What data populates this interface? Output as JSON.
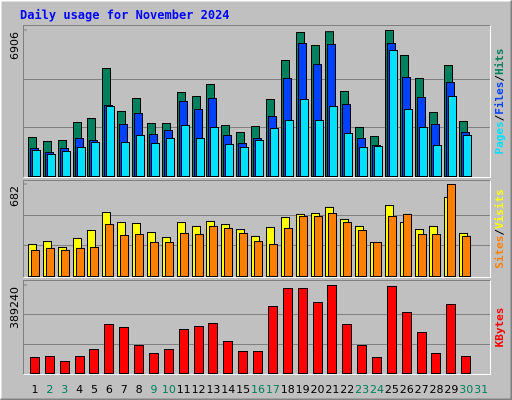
{
  "title": "Daily usage for November 2024",
  "separator": "/",
  "chart_data": [
    {
      "type": "bar",
      "ylim": [
        0,
        6906
      ],
      "yticks": [
        6906
      ],
      "series": [
        {
          "name": "Hits",
          "color": "#00805c",
          "values": [
            1845,
            1656,
            1703,
            2554,
            2743,
            5108,
            3075,
            3690,
            2507,
            2507,
            3973,
            3784,
            4352,
            2412,
            2081,
            2365,
            3642,
            5487,
            6811,
            6197,
            6850,
            4021,
            2318,
            1892,
            6906,
            5723,
            4636,
            3027,
            5250,
            2602,
            null
          ]
        },
        {
          "name": "Files",
          "color": "#0040ff",
          "values": [
            1324,
            1135,
            1324,
            1797,
            1703,
            3358,
            2460,
            2980,
            1987,
            2176,
            3548,
            3169,
            3690,
            1939,
            1561,
            1797,
            2838,
            4636,
            6291,
            5298,
            6244,
            3406,
            1797,
            1466,
            6291,
            4683,
            3737,
            2460,
            4446,
            2081,
            null
          ]
        },
        {
          "name": "Pages",
          "color": "#00e0ff",
          "values": [
            1230,
            1041,
            1183,
            1372,
            1608,
            3311,
            1608,
            1939,
            1561,
            1797,
            2412,
            1797,
            2318,
            1514,
            1372,
            1703,
            2270,
            2649,
            3642,
            2649,
            3311,
            2034,
            1372,
            1419,
            5960,
            3169,
            2318,
            1466,
            3784,
            1939,
            null
          ]
        }
      ]
    },
    {
      "type": "bar",
      "ylim": [
        0,
        682
      ],
      "yticks": [
        682
      ],
      "series": [
        {
          "name": "Visits",
          "color": "#ffff00",
          "values": [
            237,
            259,
            215,
            282,
            341,
            474,
            400,
            393,
            326,
            289,
            400,
            371,
            408,
            385,
            348,
            297,
            363,
            437,
            460,
            467,
            512,
            423,
            371,
            252,
            526,
            400,
            348,
            371,
            586,
            319,
            null
          ]
        },
        {
          "name": "Sites",
          "color": "#ff8000",
          "values": [
            193,
            208,
            193,
            208,
            215,
            385,
            304,
            311,
            252,
            252,
            319,
            311,
            371,
            356,
            319,
            259,
            237,
            356,
            445,
            445,
            467,
            400,
            341,
            252,
            445,
            460,
            311,
            311,
            682,
            297,
            null
          ]
        }
      ]
    },
    {
      "type": "bar",
      "ylim": [
        0,
        389240
      ],
      "yticks": [
        389240
      ],
      "categories": [
        "1",
        "2",
        "3",
        "4",
        "5",
        "6",
        "7",
        "8",
        "9",
        "10",
        "11",
        "12",
        "13",
        "14",
        "15",
        "16",
        "17",
        "18",
        "19",
        "20",
        "21",
        "22",
        "23",
        "24",
        "25",
        "26",
        "27",
        "28",
        "29",
        "30",
        "31"
      ],
      "category_colors": [
        "#000000",
        "#00805c",
        "#00805c",
        "#000000",
        "#000000",
        "#000000",
        "#000000",
        "#000000",
        "#00805c",
        "#00805c",
        "#000000",
        "#000000",
        "#000000",
        "#000000",
        "#000000",
        "#00805c",
        "#00805c",
        "#000000",
        "#000000",
        "#000000",
        "#000000",
        "#000000",
        "#00805c",
        "#00805c",
        "#000000",
        "#000000",
        "#000000",
        "#000000",
        "#000000",
        "#00805c",
        "#00805c"
      ],
      "series": [
        {
          "name": "KBytes",
          "color": "#ff0000",
          "values": [
            70771,
            75194,
            53078,
            75194,
            106156,
            216738,
            203468,
            123852,
            88465,
            106156,
            194621,
            207891,
            221159,
            141544,
            97312,
            97312,
            296359,
            375973,
            375973,
            314052,
            389240,
            216738,
            123852,
            70771,
            385000,
            269818,
            181353,
            88465,
            305205,
            75194,
            null
          ]
        }
      ]
    }
  ]
}
